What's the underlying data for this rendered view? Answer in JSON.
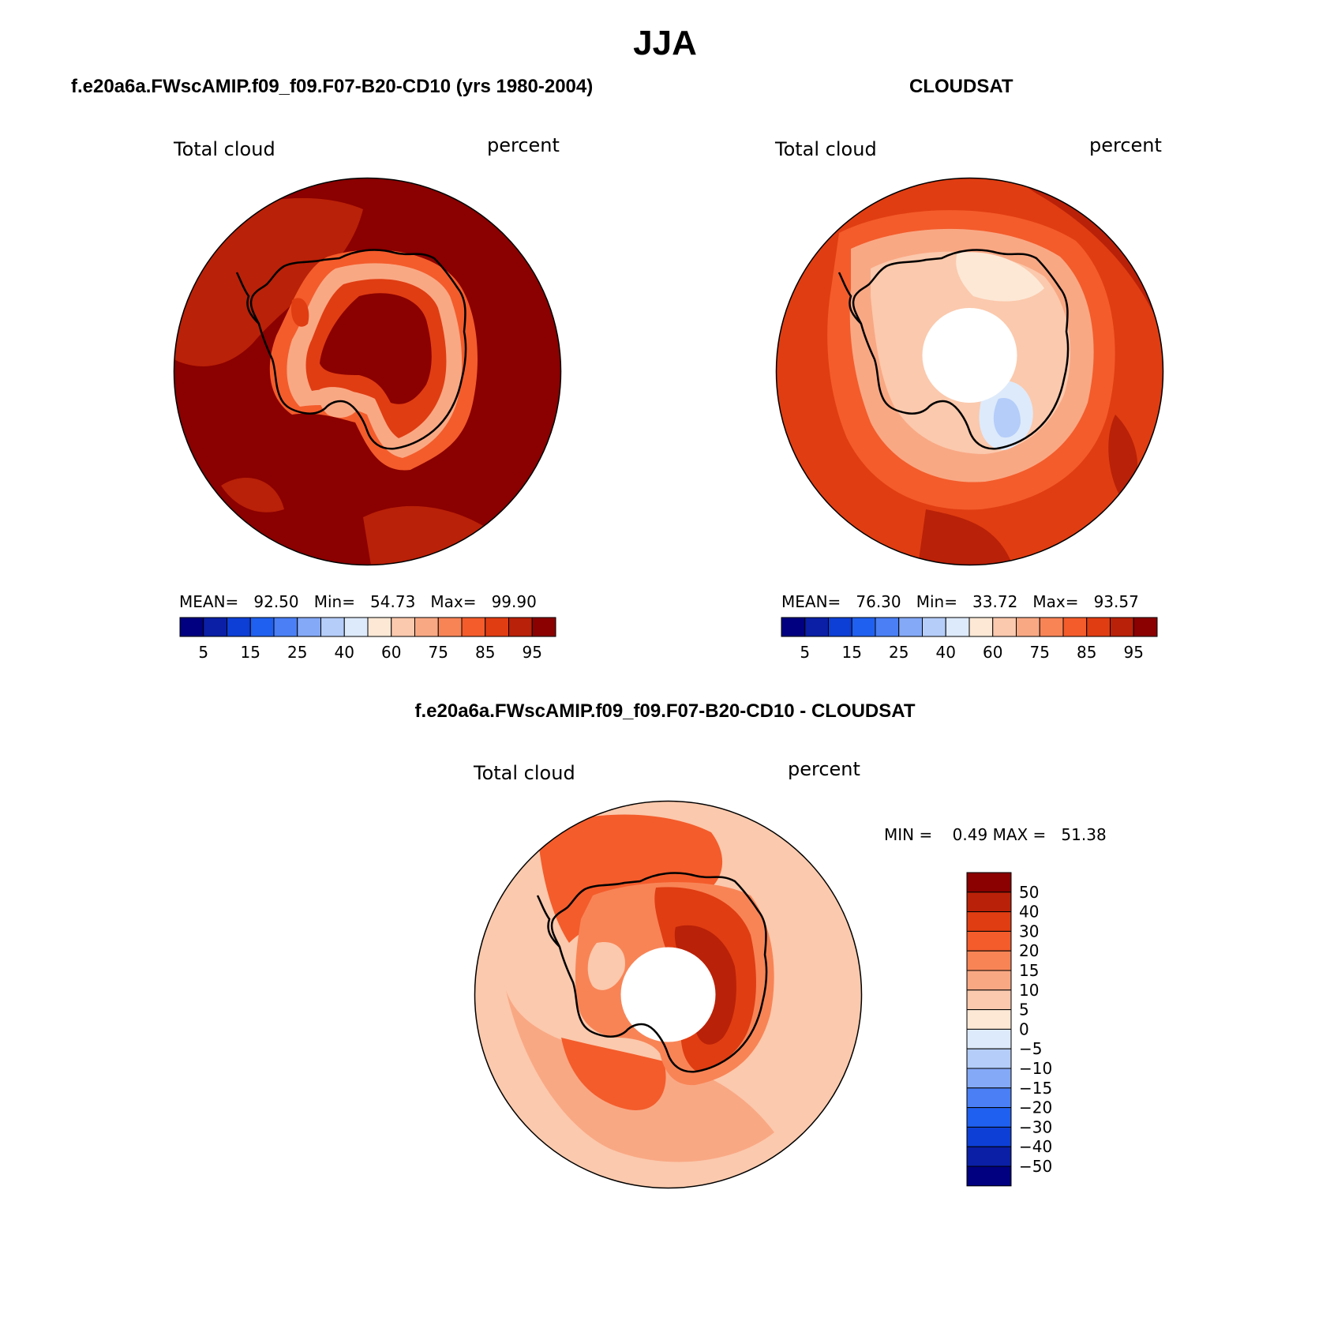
{
  "figure": {
    "title": "JJA",
    "diff_title": "f.e20a6a.FWscAMIP.f09_f09.F07-B20-CD10 - CLOUDSAT"
  },
  "colors": {
    "palette": [
      "#000080",
      "#0a1fa6",
      "#0d3fd6",
      "#2060f0",
      "#4a7ff5",
      "#84a9f7",
      "#b4cdf9",
      "#ddeafb",
      "#fde8d6",
      "#fbc9ad",
      "#f9a884",
      "#f88456",
      "#f45c2b",
      "#e03d12",
      "#b92108",
      "#8b0000"
    ],
    "coastline": "#000000"
  },
  "chart_data": [
    {
      "type": "heatmap",
      "projection": "south polar stereographic",
      "title": "f.e20a6a.FWscAMIP.f09_f09.F07-B20-CD10 (yrs 1980-2004)",
      "variable": "Total cloud",
      "units": "percent",
      "stats": {
        "mean_label": "MEAN=",
        "mean": "92.50",
        "min_label": "Min=",
        "min": "54.73",
        "max_label": "Max=",
        "max": "99.90"
      },
      "contour_levels": [
        5,
        10,
        15,
        20,
        25,
        30,
        40,
        50,
        60,
        70,
        75,
        80,
        85,
        90,
        95
      ],
      "colorbar_tick_labels": [
        "5",
        "15",
        "25",
        "40",
        "60",
        "75",
        "85",
        "95"
      ],
      "field_summary": {
        "ocean": 97,
        "ice_sheet_interior": 97,
        "coastal_ring": 70,
        "ross_sea": 62
      }
    },
    {
      "type": "heatmap",
      "projection": "south polar stereographic",
      "title": "CLOUDSAT",
      "variable": "Total cloud",
      "units": "percent",
      "stats": {
        "mean_label": "MEAN=",
        "mean": "76.30",
        "min_label": "Min=",
        "min": "33.72",
        "max_label": "Max=",
        "max": "93.57"
      },
      "contour_levels": [
        5,
        10,
        15,
        20,
        25,
        30,
        40,
        50,
        60,
        70,
        75,
        80,
        85,
        90,
        95
      ],
      "colorbar_tick_labels": [
        "5",
        "15",
        "25",
        "40",
        "60",
        "75",
        "85",
        "95"
      ],
      "field_summary": {
        "outer_ocean": 88,
        "southern_ocean": 82,
        "antarctic_interior": 62,
        "east_antarctica_min": 38,
        "polar_gap": "missing"
      }
    },
    {
      "type": "heatmap",
      "projection": "south polar stereographic",
      "title": "f.e20a6a.FWscAMIP.f09_f09.F07-B20-CD10 - CLOUDSAT",
      "variable": "Total cloud",
      "units": "percent",
      "stats": {
        "min_label": "MIN =",
        "min": "0.49",
        "max_label": "MAX =",
        "max": "51.38"
      },
      "contour_levels": [
        -50,
        -40,
        -30,
        -20,
        -15,
        -10,
        -5,
        0,
        5,
        10,
        15,
        20,
        30,
        40,
        50
      ],
      "colorbar_tick_labels": [
        "50",
        "40",
        "30",
        "20",
        "15",
        "10",
        "5",
        "0",
        "−5",
        "−10",
        "−15",
        "−20",
        "−30",
        "−40",
        "−50"
      ],
      "field_summary": {
        "outer_ocean": 8,
        "southern_ocean": 16,
        "east_antarctica": 35,
        "east_antarctica_max": 51,
        "polar_gap": "missing"
      }
    }
  ]
}
